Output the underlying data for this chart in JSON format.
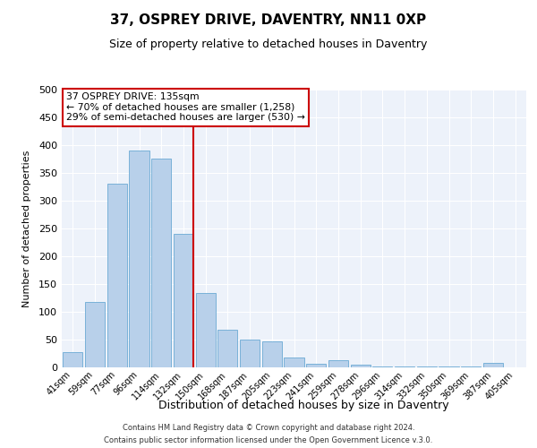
{
  "title": "37, OSPREY DRIVE, DAVENTRY, NN11 0XP",
  "subtitle": "Size of property relative to detached houses in Daventry",
  "xlabel": "Distribution of detached houses by size in Daventry",
  "ylabel": "Number of detached properties",
  "bar_labels": [
    "41sqm",
    "59sqm",
    "77sqm",
    "96sqm",
    "114sqm",
    "132sqm",
    "150sqm",
    "168sqm",
    "187sqm",
    "205sqm",
    "223sqm",
    "241sqm",
    "259sqm",
    "278sqm",
    "296sqm",
    "314sqm",
    "332sqm",
    "350sqm",
    "369sqm",
    "387sqm",
    "405sqm"
  ],
  "bar_values": [
    28,
    118,
    330,
    390,
    376,
    240,
    134,
    68,
    50,
    46,
    18,
    6,
    13,
    5,
    2,
    1,
    1,
    1,
    1,
    8,
    0
  ],
  "bar_color": "#b8d0ea",
  "bar_edge_color": "#6aaad4",
  "vline_color": "#cc0000",
  "ylim": [
    0,
    500
  ],
  "yticks": [
    0,
    50,
    100,
    150,
    200,
    250,
    300,
    350,
    400,
    450,
    500
  ],
  "annotation_title": "37 OSPREY DRIVE: 135sqm",
  "annotation_line1": "← 70% of detached houses are smaller (1,258)",
  "annotation_line2": "29% of semi-detached houses are larger (530) →",
  "annotation_box_color": "#ffffff",
  "annotation_box_edge": "#cc0000",
  "bg_color": "#edf2fa",
  "grid_color": "#ffffff",
  "footer_line1": "Contains HM Land Registry data © Crown copyright and database right 2024.",
  "footer_line2": "Contains public sector information licensed under the Open Government Licence v.3.0."
}
